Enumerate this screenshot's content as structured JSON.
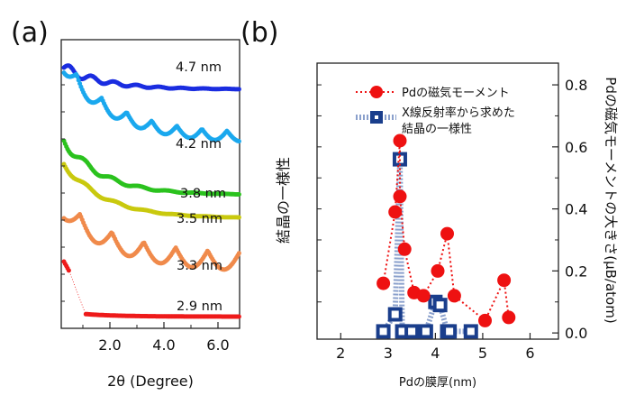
{
  "chart_data": [
    {
      "panel_label": "(a)",
      "type": "line",
      "xlabel": "2θ (Degree)",
      "x_ticks": [
        "2.0",
        "4.0",
        "6.0"
      ],
      "xlim": [
        0.2,
        6.8
      ],
      "ylabel": "",
      "grid": false,
      "series": [
        {
          "name": "4.7 nm",
          "color": "#1a2de0",
          "thickness": 4.7
        },
        {
          "name": "4.2 nm",
          "color": "#1aa8ee",
          "thickness": 4.2
        },
        {
          "name": "3.8 nm",
          "color": "#2bc21e",
          "thickness": 3.8
        },
        {
          "name": "3.5 nm",
          "color": "#c9c90e",
          "thickness": 3.5
        },
        {
          "name": "3.3 nm",
          "color": "#f08a4b",
          "thickness": 3.3
        },
        {
          "name": "2.9 nm",
          "color": "#ee1b1b",
          "thickness": 2.9
        }
      ]
    },
    {
      "panel_label": "(b)",
      "type": "scatter",
      "xlabel": "Pdの膜厚(nm)",
      "x_ticks": [
        "2",
        "3",
        "4",
        "5",
        "6"
      ],
      "xlim": [
        1.5,
        6.6
      ],
      "ylabel_left": "結晶の一様性",
      "ylabel_right": "Pdの磁気モーメントの大きさ(μB/atom)",
      "y_ticks": [
        "0.0",
        "0.2",
        "0.4",
        "0.6",
        "0.8"
      ],
      "ylim": [
        -0.02,
        0.87
      ],
      "legend_position": "top-left",
      "series": [
        {
          "name": "Pdの磁気モーメント",
          "color": "#ee1111",
          "marker": "circle",
          "line": "dotted",
          "x": [
            2.9,
            3.15,
            3.25,
            3.25,
            3.35,
            3.55,
            3.75,
            4.05,
            4.25,
            4.4,
            5.05,
            5.45,
            5.55
          ],
          "y": [
            0.16,
            0.39,
            0.62,
            0.44,
            0.27,
            0.13,
            0.12,
            0.2,
            0.32,
            0.12,
            0.04,
            0.17,
            0.05
          ]
        },
        {
          "name": "X線反射率から求めた\n結晶の一様性",
          "color": "#1a3e8c",
          "marker": "square",
          "line": "dotted-thick",
          "x": [
            2.9,
            3.15,
            3.25,
            3.3,
            3.5,
            3.8,
            4.0,
            4.1,
            4.25,
            4.3,
            4.75
          ],
          "y": [
            0.005,
            0.06,
            0.56,
            0.005,
            0.005,
            0.005,
            0.1,
            0.09,
            0.005,
            0.005,
            0.005
          ]
        }
      ]
    }
  ]
}
